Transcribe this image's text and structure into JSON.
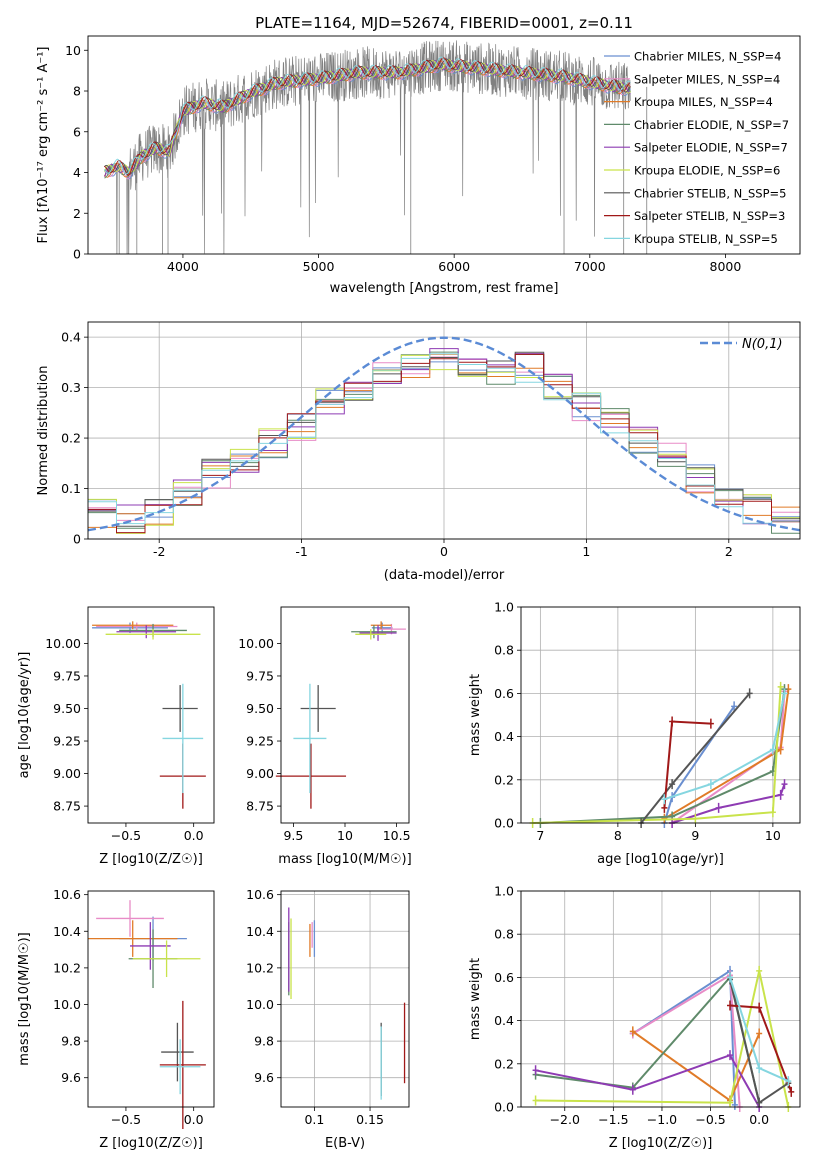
{
  "colors": {
    "chabrier_miles": "#6a8fd0",
    "salpeter_miles": "#e88cc7",
    "kroupa_miles": "#e07b28",
    "chabrier_elodie": "#5f8a6a",
    "salpeter_elodie": "#8e3bb3",
    "kroupa_elodie": "#c9e34b",
    "chabrier_stelib": "#555555",
    "salpeter_stelib": "#a01818",
    "kroupa_stelib": "#85d6e0",
    "data_gray": "#808080",
    "gauss": "#5b8bd5"
  },
  "chart_data": [
    {
      "id": "spectrum",
      "type": "line",
      "title": "PLATE=1164, MJD=52674, FIBERID=0001, z=0.11",
      "xlabel": "wavelength [Angstrom, rest frame]",
      "ylabel": "Flux [fλ10⁻¹⁷ erg cm⁻² s⁻¹ A⁻¹]",
      "xlim": [
        3300,
        8550
      ],
      "ylim": [
        0,
        10.7
      ],
      "xticks": [
        4000,
        5000,
        6000,
        7000,
        8000
      ],
      "yticks": [
        0,
        2,
        4,
        6,
        8,
        10
      ],
      "grid": false,
      "legend_loc": "upper right",
      "continuum_x": [
        3420,
        3520,
        3600,
        3700,
        3800,
        3900,
        4000,
        4150,
        4300,
        4500,
        4700,
        5000,
        5300,
        5600,
        5900,
        6200,
        6500,
        6800,
        7100,
        7300
      ],
      "continuum_y": [
        4.0,
        4.3,
        4.0,
        4.8,
        5.2,
        5.0,
        7.0,
        7.4,
        7.2,
        7.9,
        8.4,
        8.6,
        8.9,
        8.9,
        9.3,
        9.1,
        8.9,
        8.7,
        8.3,
        8.1
      ],
      "legend": [
        "Chabrier MILES, N_SSP=4",
        "Salpeter MILES, N_SSP=4",
        "Kroupa MILES, N_SSP=4",
        "Chabrier ELODIE, N_SSP=7",
        "Salpeter ELODIE, N_SSP=7",
        "Kroupa ELODIE, N_SSP=6",
        "Chabrier STELIB, N_SSP=5",
        "Salpeter STELIB, N_SSP=3",
        "Kroupa STELIB, N_SSP=5"
      ]
    },
    {
      "id": "residuals",
      "type": "histogram",
      "xlabel": "(data-model)/error",
      "ylabel": "Normed distribution",
      "xlim": [
        -2.5,
        2.5
      ],
      "ylim": [
        0,
        0.43
      ],
      "xticks": [
        -2,
        -1,
        0,
        1,
        2
      ],
      "yticks": [
        0.0,
        0.1,
        0.2,
        0.3,
        0.4
      ],
      "grid": true,
      "legend_loc": "upper right",
      "gauss_label": "N(0,1)",
      "bin_edges": [
        -2.5,
        -2.3,
        -2.1,
        -1.9,
        -1.7,
        -1.5,
        -1.3,
        -1.1,
        -0.9,
        -0.7,
        -0.5,
        -0.3,
        -0.1,
        0.1,
        0.3,
        0.5,
        0.7,
        0.9,
        1.1,
        1.3,
        1.5,
        1.7,
        1.9,
        2.1,
        2.3,
        2.5
      ],
      "base_hist": [
        0.05,
        0.04,
        0.05,
        0.09,
        0.13,
        0.16,
        0.19,
        0.22,
        0.27,
        0.3,
        0.33,
        0.34,
        0.35,
        0.34,
        0.33,
        0.34,
        0.3,
        0.26,
        0.23,
        0.2,
        0.16,
        0.12,
        0.09,
        0.06,
        0.04
      ]
    },
    {
      "id": "age_vs_Z",
      "type": "errorbar",
      "xlabel": "Z [log10(Z/Z☉)]",
      "ylabel": "age  [log10(age/yr)]",
      "xlim": [
        -0.78,
        0.15
      ],
      "ylim": [
        8.62,
        10.28
      ],
      "xticks": [
        -0.5,
        0.0
      ],
      "xticklabels": [
        "−0.5",
        "0.0"
      ],
      "yticks": [
        8.75,
        9.0,
        9.25,
        9.5,
        9.75,
        10.0
      ],
      "grid": false,
      "points": [
        {
          "x": -0.47,
          "y": 10.12,
          "xerr": 0.28,
          "yerr": 0.04,
          "c": "chabrier_miles"
        },
        {
          "x": -0.42,
          "y": 10.13,
          "xerr": 0.3,
          "yerr": 0.03,
          "c": "salpeter_miles"
        },
        {
          "x": -0.45,
          "y": 10.14,
          "xerr": 0.3,
          "yerr": 0.03,
          "c": "kroupa_miles"
        },
        {
          "x": -0.3,
          "y": 10.1,
          "xerr": 0.25,
          "yerr": 0.05,
          "c": "chabrier_elodie"
        },
        {
          "x": -0.35,
          "y": 10.09,
          "xerr": 0.22,
          "yerr": 0.05,
          "c": "salpeter_elodie"
        },
        {
          "x": -0.3,
          "y": 10.07,
          "xerr": 0.35,
          "yerr": 0.04,
          "c": "kroupa_elodie"
        },
        {
          "x": -0.1,
          "y": 9.5,
          "xerr": 0.13,
          "yerr": 0.18,
          "c": "chabrier_stelib"
        },
        {
          "x": -0.08,
          "y": 8.98,
          "xerr": 0.17,
          "yerr": 0.25,
          "c": "salpeter_stelib"
        },
        {
          "x": -0.08,
          "y": 9.27,
          "xerr": 0.15,
          "yerr": 0.42,
          "c": "kroupa_stelib"
        }
      ]
    },
    {
      "id": "age_vs_mass",
      "type": "errorbar",
      "xlabel": "mass [log10(M/M☉)]",
      "xlim": [
        9.38,
        10.62
      ],
      "ylim": [
        8.62,
        10.28
      ],
      "xticks": [
        9.5,
        10.0,
        10.5
      ],
      "yticks": [
        8.75,
        9.0,
        9.25,
        9.5,
        9.75,
        10.0
      ],
      "grid": false,
      "points": [
        {
          "x": 10.36,
          "y": 10.12,
          "xerr": 0.1,
          "yerr": 0.04,
          "c": "chabrier_miles"
        },
        {
          "x": 10.45,
          "y": 10.11,
          "xerr": 0.14,
          "yerr": 0.04,
          "c": "salpeter_miles"
        },
        {
          "x": 10.35,
          "y": 10.14,
          "xerr": 0.1,
          "yerr": 0.03,
          "c": "kroupa_miles"
        },
        {
          "x": 10.28,
          "y": 10.09,
          "xerr": 0.22,
          "yerr": 0.05,
          "c": "chabrier_elodie"
        },
        {
          "x": 10.32,
          "y": 10.08,
          "xerr": 0.18,
          "yerr": 0.06,
          "c": "salpeter_elodie"
        },
        {
          "x": 10.25,
          "y": 10.07,
          "xerr": 0.15,
          "yerr": 0.04,
          "c": "kroupa_elodie"
        },
        {
          "x": 9.74,
          "y": 9.5,
          "xerr": 0.17,
          "yerr": 0.18,
          "c": "chabrier_stelib"
        },
        {
          "x": 9.67,
          "y": 8.98,
          "xerr": 0.34,
          "yerr": 0.25,
          "c": "salpeter_stelib"
        },
        {
          "x": 9.66,
          "y": 9.27,
          "xerr": 0.16,
          "yerr": 0.42,
          "c": "kroupa_stelib"
        }
      ]
    },
    {
      "id": "weight_vs_age",
      "type": "scatter",
      "xlabel": "age  [log10(age/yr)]",
      "ylabel": "mass weight",
      "xlim": [
        6.75,
        10.35
      ],
      "ylim": [
        0,
        1.0
      ],
      "xticks": [
        7,
        8,
        9,
        10
      ],
      "yticks": [
        0.0,
        0.2,
        0.4,
        0.6,
        0.8,
        1.0
      ],
      "grid": true,
      "series": [
        {
          "c": "chabrier_miles",
          "x": [
            8.6,
            8.7,
            9.5
          ],
          "y": [
            0.0,
            0.12,
            0.54
          ]
        },
        {
          "c": "salpeter_miles",
          "x": [
            8.7,
            10.1,
            10.15
          ],
          "y": [
            0.0,
            0.35,
            0.61
          ]
        },
        {
          "c": "kroupa_miles",
          "x": [
            8.6,
            10.1,
            10.2
          ],
          "y": [
            0.02,
            0.34,
            0.62
          ]
        },
        {
          "c": "chabrier_elodie",
          "x": [
            7.0,
            8.7,
            10.0,
            10.15
          ],
          "y": [
            0.0,
            0.03,
            0.24,
            0.62
          ]
        },
        {
          "c": "salpeter_elodie",
          "x": [
            8.7,
            9.3,
            10.1,
            10.15
          ],
          "y": [
            0.0,
            0.07,
            0.13,
            0.18
          ]
        },
        {
          "c": "kroupa_elodie",
          "x": [
            6.9,
            9.0,
            10.0,
            10.1
          ],
          "y": [
            0.0,
            0.02,
            0.05,
            0.63
          ]
        },
        {
          "c": "chabrier_stelib",
          "x": [
            8.3,
            8.7,
            9.7
          ],
          "y": [
            0.0,
            0.18,
            0.6
          ]
        },
        {
          "c": "salpeter_stelib",
          "x": [
            8.6,
            8.7,
            9.2
          ],
          "y": [
            0.07,
            0.47,
            0.46
          ]
        },
        {
          "c": "kroupa_stelib",
          "x": [
            8.6,
            9.2,
            10.0,
            10.15
          ],
          "y": [
            0.11,
            0.18,
            0.34,
            0.6
          ]
        }
      ]
    },
    {
      "id": "mass_vs_Z",
      "type": "errorbar",
      "xlabel": "Z [log10(Z/Z☉)]",
      "ylabel": "mass [log10(M/M☉)]",
      "xlim": [
        -0.78,
        0.15
      ],
      "ylim": [
        9.44,
        10.62
      ],
      "xticks": [
        -0.5,
        0.0
      ],
      "xticklabels": [
        "−0.5",
        "0.0"
      ],
      "yticks": [
        9.6,
        9.8,
        10.0,
        10.2,
        10.4,
        10.6
      ],
      "grid": false,
      "points": [
        {
          "x": -0.3,
          "y": 10.36,
          "xerr": 0.25,
          "yerr": 0.12,
          "c": "chabrier_miles"
        },
        {
          "x": -0.47,
          "y": 10.47,
          "xerr": 0.25,
          "yerr": 0.1,
          "c": "salpeter_miles"
        },
        {
          "x": -0.45,
          "y": 10.36,
          "xerr": 0.33,
          "yerr": 0.1,
          "c": "kroupa_miles"
        },
        {
          "x": -0.3,
          "y": 10.25,
          "xerr": 0.18,
          "yerr": 0.16,
          "c": "chabrier_elodie"
        },
        {
          "x": -0.32,
          "y": 10.32,
          "xerr": 0.15,
          "yerr": 0.13,
          "c": "salpeter_elodie"
        },
        {
          "x": -0.2,
          "y": 10.25,
          "xerr": 0.25,
          "yerr": 0.1,
          "c": "kroupa_elodie"
        },
        {
          "x": -0.12,
          "y": 9.74,
          "xerr": 0.12,
          "yerr": 0.16,
          "c": "chabrier_stelib"
        },
        {
          "x": -0.08,
          "y": 9.67,
          "xerr": 0.17,
          "yerr": 0.35,
          "c": "salpeter_stelib"
        },
        {
          "x": -0.1,
          "y": 9.66,
          "xerr": 0.15,
          "yerr": 0.15,
          "c": "kroupa_stelib"
        }
      ]
    },
    {
      "id": "mass_vs_ebv",
      "type": "errorbar",
      "xlabel": "E(B-V)",
      "xlim": [
        0.07,
        0.185
      ],
      "ylim": [
        9.44,
        10.62
      ],
      "xticks": [
        0.1,
        0.15
      ],
      "yticks": [
        9.6,
        9.8,
        10.0,
        10.2,
        10.4,
        10.6
      ],
      "grid": true,
      "points": [
        {
          "x": 0.1,
          "y": 10.36,
          "yerr": 0.1,
          "c": "chabrier_miles"
        },
        {
          "x": 0.098,
          "y": 10.38,
          "yerr": 0.07,
          "c": "salpeter_miles"
        },
        {
          "x": 0.096,
          "y": 10.35,
          "yerr": 0.09,
          "c": "kroupa_miles"
        },
        {
          "x": 0.077,
          "y": 10.25,
          "yerr": 0.2,
          "c": "chabrier_elodie"
        },
        {
          "x": 0.077,
          "y": 10.3,
          "yerr": 0.23,
          "c": "salpeter_elodie"
        },
        {
          "x": 0.079,
          "y": 10.25,
          "yerr": 0.22,
          "c": "kroupa_elodie"
        },
        {
          "x": 0.16,
          "y": 9.7,
          "yerr": 0.2,
          "c": "chabrier_stelib"
        },
        {
          "x": 0.181,
          "y": 9.79,
          "yerr": 0.22,
          "c": "salpeter_stelib"
        },
        {
          "x": 0.16,
          "y": 9.68,
          "yerr": 0.2,
          "c": "kroupa_stelib"
        }
      ]
    },
    {
      "id": "weight_vs_Z",
      "type": "scatter",
      "xlabel": "Z [log10(Z/Z☉)]",
      "ylabel": "mass weight",
      "xlim": [
        -2.45,
        0.42
      ],
      "ylim": [
        0,
        1.0
      ],
      "xticks": [
        -2.0,
        -1.5,
        -1.0,
        -0.5,
        0.0
      ],
      "xticklabels": [
        "−2.0",
        "−1.5",
        "−1.0",
        "−0.5",
        "0.0"
      ],
      "yticks": [
        0.0,
        0.2,
        0.4,
        0.6,
        0.8,
        1.0
      ],
      "grid": true,
      "series": [
        {
          "c": "chabrier_miles",
          "x": [
            -1.3,
            -0.3,
            -0.25
          ],
          "y": [
            0.34,
            0.63,
            0.01
          ]
        },
        {
          "c": "salpeter_miles",
          "x": [
            -1.3,
            -0.3,
            -0.2
          ],
          "y": [
            0.34,
            0.61,
            0.0
          ]
        },
        {
          "c": "kroupa_miles",
          "x": [
            -1.3,
            -0.3,
            0.0
          ],
          "y": [
            0.35,
            0.03,
            0.34
          ]
        },
        {
          "c": "chabrier_elodie",
          "x": [
            -2.3,
            -1.3,
            -0.3,
            0.0
          ],
          "y": [
            0.15,
            0.09,
            0.6,
            0.02
          ]
        },
        {
          "c": "salpeter_elodie",
          "x": [
            -2.3,
            -1.3,
            -0.3,
            0.0
          ],
          "y": [
            0.17,
            0.08,
            0.24,
            0.0
          ]
        },
        {
          "c": "kroupa_elodie",
          "x": [
            -2.3,
            -0.3,
            0.0,
            0.3
          ],
          "y": [
            0.03,
            0.02,
            0.63,
            0.0
          ]
        },
        {
          "c": "chabrier_stelib",
          "x": [
            -0.3,
            0.0,
            0.3
          ],
          "y": [
            0.59,
            0.02,
            0.11
          ]
        },
        {
          "c": "salpeter_stelib",
          "x": [
            -0.3,
            0.0,
            0.33
          ],
          "y": [
            0.47,
            0.46,
            0.07
          ]
        },
        {
          "c": "kroupa_stelib",
          "x": [
            -0.3,
            0.0,
            0.3
          ],
          "y": [
            0.6,
            0.18,
            0.12
          ]
        }
      ]
    }
  ]
}
